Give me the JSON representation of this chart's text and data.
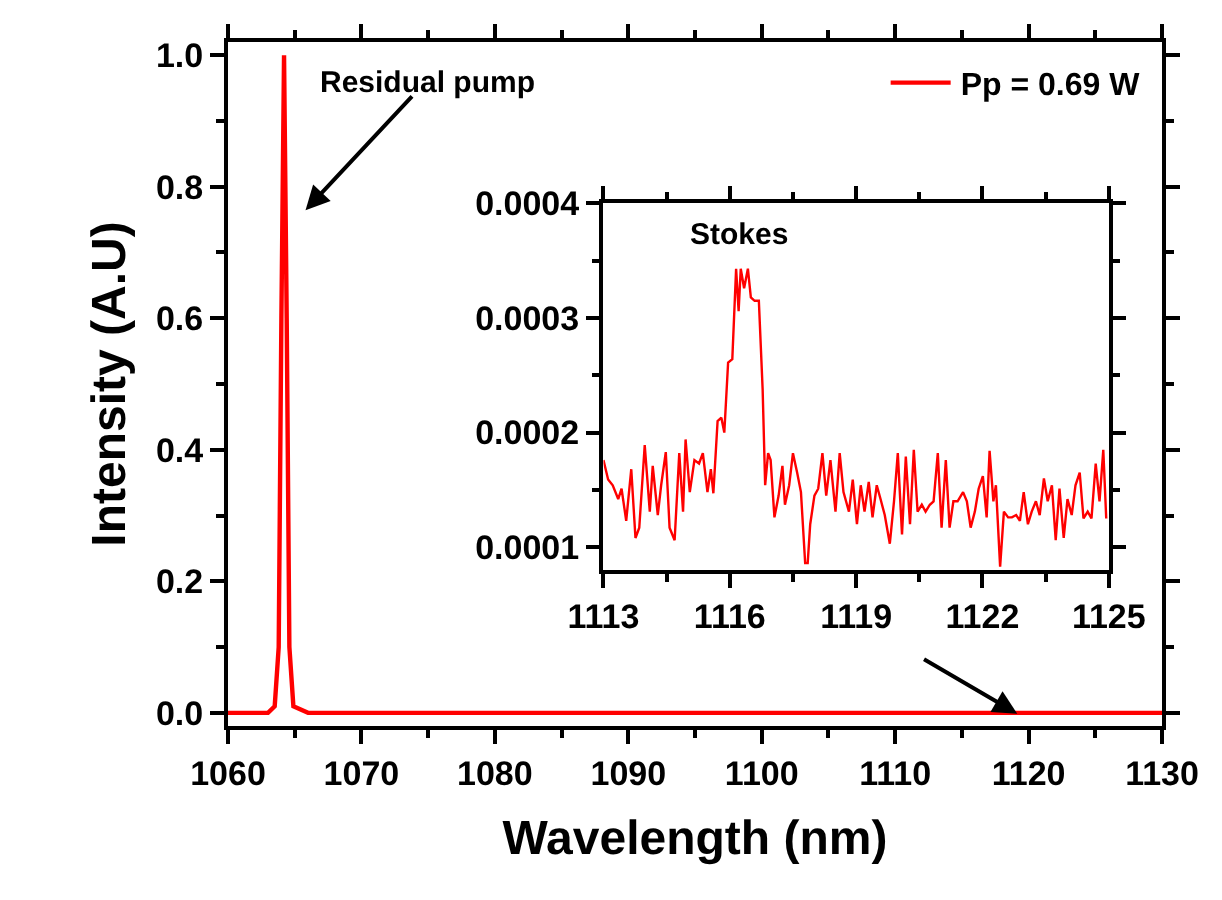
{
  "chart_data": [
    {
      "type": "line",
      "xlabel": "Wavelength (nm)",
      "ylabel": "Intensity (A.U)",
      "xlim": [
        1060,
        1130
      ],
      "ylim": [
        -0.02,
        1.02
      ],
      "xticks": [
        1060,
        1070,
        1080,
        1090,
        1100,
        1110,
        1120,
        1130
      ],
      "yticks": [
        {
          "value": 0,
          "label": "0.0"
        },
        {
          "value": 0.2,
          "label": "0.2"
        },
        {
          "value": 0.4,
          "label": "0.4"
        },
        {
          "value": 0.6,
          "label": "0.6"
        },
        {
          "value": 0.8,
          "label": "0.8"
        },
        {
          "value": 1,
          "label": "1.0"
        }
      ],
      "legend": "top right",
      "marker": "none",
      "line_style": "solid",
      "annotations": [
        "Residual pump"
      ],
      "series": [
        {
          "name": "Pp = 0.69 W",
          "color": "#ff0000",
          "x": [
            1060,
            1062,
            1063,
            1063.5,
            1063.8,
            1064.0,
            1064.2,
            1064.4,
            1064.6,
            1064.9,
            1066,
            1080,
            1100,
            1130
          ],
          "values": [
            0,
            0,
            0,
            0.01,
            0.1,
            0.6,
            1.0,
            0.6,
            0.1,
            0.01,
            0,
            0,
            0,
            0
          ]
        }
      ]
    },
    {
      "type": "line",
      "xlim": [
        1113,
        1125
      ],
      "ylim": [
        8e-05,
        0.0004
      ],
      "xticks": [
        1113,
        1116,
        1119,
        1122,
        1125
      ],
      "yticks": [
        0.0001,
        0.0002,
        0.0003,
        0.0004
      ],
      "marker": "none",
      "line_style": "solid",
      "annotations": [
        "Stokes"
      ],
      "series": [
        {
          "color": "#ff0000",
          "x": [
            1113.0,
            1113.11,
            1113.22,
            1113.35,
            1113.43,
            1113.54,
            1113.66,
            1113.76,
            1113.85,
            1113.98,
            1114.1,
            1114.17,
            1114.29,
            1114.37,
            1114.48,
            1114.57,
            1114.69,
            1114.8,
            1114.89,
            1114.95,
            1115.05,
            1115.16,
            1115.27,
            1115.36,
            1115.47,
            1115.55,
            1115.61,
            1115.71,
            1115.8,
            1115.87,
            1115.96,
            1116.06,
            1116.15,
            1116.21,
            1116.26,
            1116.34,
            1116.43,
            1116.5,
            1116.59,
            1116.69,
            1116.78,
            1116.84,
            1116.91,
            1116.97,
            1117.06,
            1117.16,
            1117.25,
            1117.31,
            1117.41,
            1117.5,
            1117.6,
            1117.69,
            1117.79,
            1117.85,
            1117.91,
            1118.01,
            1118.1,
            1118.2,
            1118.29,
            1118.39,
            1118.51,
            1118.61,
            1118.7,
            1118.83,
            1118.92,
            1119.02,
            1119.11,
            1119.2,
            1119.3,
            1119.39,
            1119.49,
            1119.58,
            1119.68,
            1119.8,
            1119.9,
            1119.99,
            1120.09,
            1120.18,
            1120.28,
            1120.37,
            1120.46,
            1120.56,
            1120.65,
            1120.75,
            1120.84,
            1120.94,
            1121.03,
            1121.13,
            1121.22,
            1121.31,
            1121.41,
            1121.54,
            1121.63,
            1121.72,
            1121.82,
            1121.91,
            1122.01,
            1122.1,
            1122.17,
            1122.26,
            1122.32,
            1122.42,
            1122.51,
            1122.61,
            1122.7,
            1122.8,
            1122.89,
            1122.98,
            1123.08,
            1123.17,
            1123.27,
            1123.36,
            1123.46,
            1123.55,
            1123.65,
            1123.74,
            1123.83,
            1123.93,
            1124.02,
            1124.12,
            1124.21,
            1124.31,
            1124.4,
            1124.5,
            1124.59,
            1124.69,
            1124.78,
            1124.87,
            1124.94
          ],
          "values": [
            0.000176,
            0.000159,
            0.000154,
            0.000142,
            0.000151,
            0.000123,
            0.000168,
            0.000108,
            0.000117,
            0.000189,
            0.000131,
            0.000171,
            0.000128,
            0.000154,
            0.000183,
            0.000117,
            0.000106,
            0.000182,
            0.000131,
            0.000194,
            0.000148,
            0.000176,
            0.000173,
            0.000182,
            0.000148,
            0.000168,
            0.000147,
            0.00021,
            0.000213,
            0.0002,
            0.000261,
            0.000264,
            0.000343,
            0.000306,
            0.000343,
            0.000326,
            0.000343,
            0.000318,
            0.000315,
            0.000315,
            0.000238,
            0.000154,
            0.000182,
            0.000176,
            0.000126,
            0.000145,
            0.000171,
            0.000137,
            0.000154,
            0.000182,
            0.000165,
            0.000148,
            8.6e-05,
            8.6e-05,
            0.00012,
            0.000145,
            0.000151,
            0.000182,
            0.000145,
            0.000176,
            0.000131,
            0.000182,
            0.000148,
            0.000131,
            0.000159,
            0.00012,
            0.000154,
            0.000131,
            0.000157,
            0.000126,
            0.000154,
            0.000142,
            0.000128,
            0.000103,
            0.00014,
            0.000182,
            0.000111,
            0.000179,
            0.00012,
            0.000185,
            0.000131,
            0.000137,
            0.000131,
            0.000137,
            0.00014,
            0.000182,
            0.000117,
            0.000176,
            0.000117,
            0.00014,
            0.00014,
            0.000148,
            0.00014,
            0.000117,
            0.000131,
            0.000151,
            0.000162,
            0.000126,
            0.000184,
            0.00014,
            0.000154,
            8.3e-05,
            0.000131,
            0.000126,
            0.000126,
            0.000128,
            0.000123,
            0.000148,
            0.00012,
            0.000131,
            0.00014,
            0.000128,
            0.00016,
            0.00014,
            0.000154,
            0.000106,
            0.000151,
            0.000108,
            0.000142,
            0.000128,
            0.000154,
            0.000165,
            0.000125,
            0.000131,
            0.000125,
            0.000173,
            0.00014,
            0.000185,
            0.000125
          ]
        }
      ]
    }
  ]
}
